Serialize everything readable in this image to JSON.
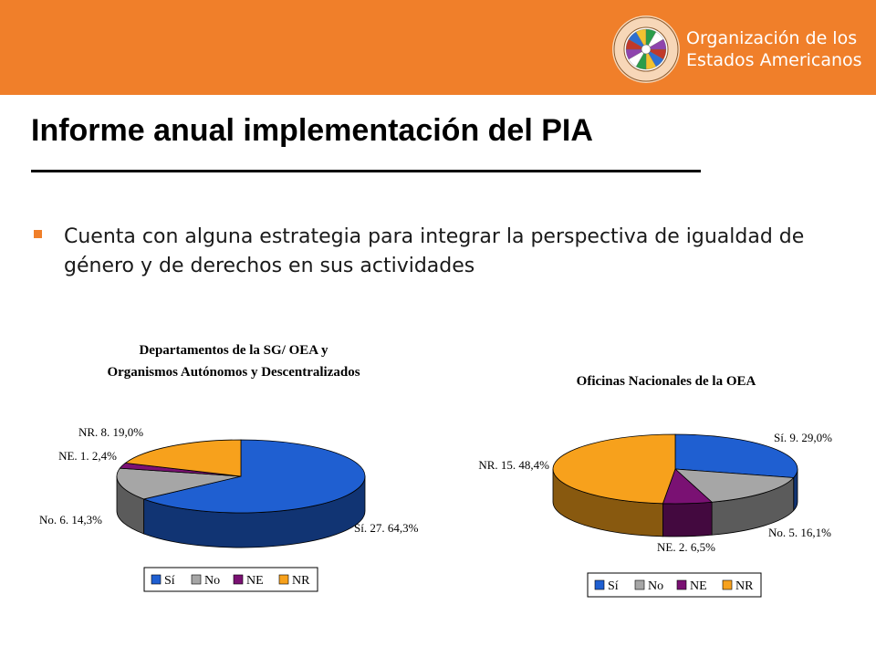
{
  "header": {
    "org_line1": "Organización de los",
    "org_line2": "Estados Americanos",
    "seal_text": "ORGANIZACIÓN DE LOS ESTADOS AMERICANOS"
  },
  "title": "Informe anual implementación del PIA",
  "bullet": "Cuenta con alguna estrategia para integrar la perspectiva de igualdad de género y de derechos en sus actividades",
  "colors": {
    "brand": "#f07f2a",
    "si": "#1f5fd1",
    "no": "#a6a6a6",
    "ne": "#7a1173",
    "nr": "#f7a11c"
  },
  "chart_data": [
    {
      "type": "pie",
      "title": [
        "Departamentos de la SG/ OEA y",
        "Organismos Autónomos y Descentralizados"
      ],
      "categories": [
        "Sí",
        "No",
        "NE",
        "NR"
      ],
      "values": [
        27,
        6,
        1,
        8
      ],
      "percent": [
        64.3,
        14.3,
        2.4,
        19.0
      ],
      "slice_labels": [
        "Sí. 27. 64,3%",
        "No. 6. 14,3%",
        "NE. 1. 2,4%",
        "NR. 8. 19,0%"
      ],
      "legend": [
        "Sí",
        "No",
        "NE",
        "NR"
      ],
      "legend_position": "bottom",
      "style": "3d"
    },
    {
      "type": "pie",
      "title": [
        "Oficinas Nacionales de la OEA"
      ],
      "categories": [
        "Sí",
        "No",
        "NE",
        "NR"
      ],
      "values": [
        9,
        5,
        2,
        15
      ],
      "percent": [
        29.0,
        16.1,
        6.5,
        48.4
      ],
      "slice_labels": [
        "Sí. 9. 29,0%",
        "No. 5. 16,1%",
        "NE. 2. 6,5%",
        "NR. 15. 48,4%"
      ],
      "legend": [
        "Sí",
        "No",
        "NE",
        "NR"
      ],
      "legend_position": "bottom",
      "style": "3d"
    }
  ]
}
